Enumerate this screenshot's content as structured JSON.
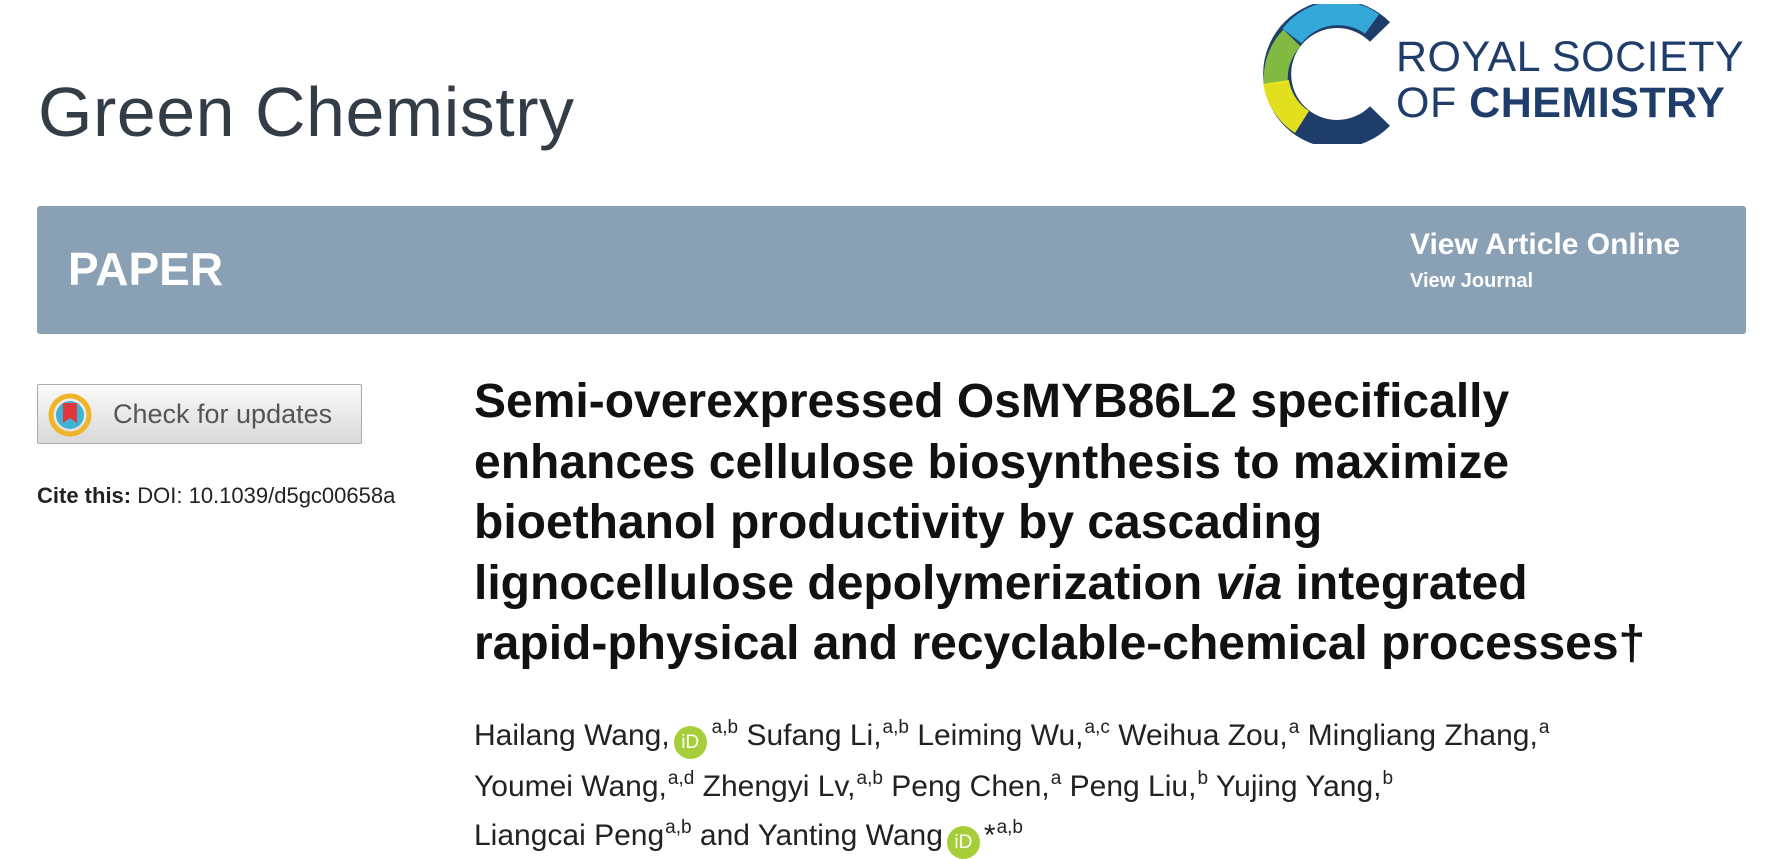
{
  "header": {
    "journal": "Green Chemistry",
    "publisher": {
      "line1": "ROYAL SOCIETY",
      "line2_prefix": "OF",
      "line2_main": "CHEMISTRY"
    }
  },
  "banner": {
    "type": "PAPER",
    "link_primary": "View Article Online",
    "link_secondary": "View Journal"
  },
  "sidebar": {
    "check_updates": "Check for updates",
    "cite_label": "Cite this:",
    "cite_doi": "DOI: 10.1039/d5gc00658a"
  },
  "article": {
    "title_lines": [
      [
        {
          "text": "Semi-overexpressed OsMYB86L2 specifically",
          "italic": false
        }
      ],
      [
        {
          "text": "enhances cellulose biosynthesis to maximize",
          "italic": false
        }
      ],
      [
        {
          "text": "bioethanol productivity by cascading",
          "italic": false
        }
      ],
      [
        {
          "text": "lignocellulose depolymerization ",
          "italic": false
        },
        {
          "text": "via",
          "italic": true
        },
        {
          "text": " integrated",
          "italic": false
        }
      ],
      [
        {
          "text": "rapid-physical and recyclable-chemical processes†",
          "italic": false
        }
      ]
    ],
    "orcid_icon_text": "iD",
    "author_lines": [
      [
        {
          "name": "Hailang Wang,",
          "orcid": true,
          "sup": "a,b"
        },
        {
          "name": "Sufang Li,",
          "sup": "a,b"
        },
        {
          "name": "Leiming Wu,",
          "sup": "a,c"
        },
        {
          "name": "Weihua Zou,",
          "sup": "a"
        },
        {
          "name": "Mingliang Zhang,",
          "sup": "a"
        }
      ],
      [
        {
          "name": "Youmei Wang,",
          "sup": "a,d"
        },
        {
          "name": "Zhengyi Lv,",
          "sup": "a,b"
        },
        {
          "name": "Peng Chen,",
          "sup": "a"
        },
        {
          "name": "Peng Liu,",
          "sup": "b"
        },
        {
          "name": "Yujing Yang,",
          "sup": "b"
        }
      ],
      [
        {
          "name": "Liangcai Peng",
          "sup": "a,b"
        },
        {
          "name": "and Yanting Wang",
          "orcid": true,
          "mark": "*",
          "sup": "a,b"
        }
      ]
    ]
  }
}
